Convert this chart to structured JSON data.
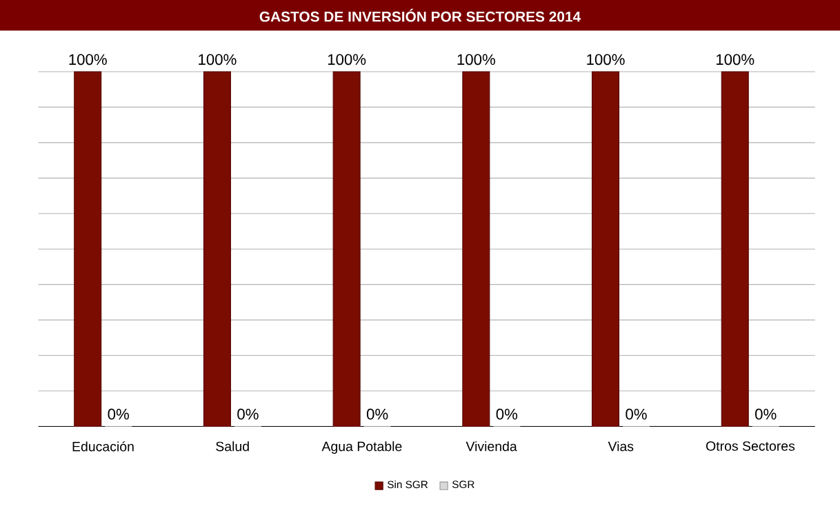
{
  "chart_data": {
    "type": "bar",
    "title": "GASTOS DE INVERSIÓN POR SECTORES 2014",
    "categories": [
      "Educación",
      "Salud",
      "Agua Potable",
      "Vivienda",
      "Vias",
      "Otros Sectores"
    ],
    "series": [
      {
        "name": "Sin SGR",
        "color": "#7a0c02",
        "values": [
          100,
          100,
          100,
          100,
          100,
          100
        ],
        "value_labels": [
          "100%",
          "100%",
          "100%",
          "100%",
          "100%",
          "100%"
        ]
      },
      {
        "name": "SGR",
        "color": "#d9d9d9",
        "values": [
          0,
          0,
          0,
          0,
          0,
          0
        ],
        "value_labels": [
          "0%",
          "0%",
          "0%",
          "0%",
          "0%",
          "0%"
        ]
      }
    ],
    "ylim": [
      0,
      100
    ],
    "yticks": [
      {
        "value": 0,
        "label": null
      },
      {
        "value": 10,
        "label": null
      },
      {
        "value": 20,
        "label": null
      },
      {
        "value": 30,
        "label": null
      },
      {
        "value": 40,
        "label": null
      },
      {
        "value": 50,
        "label": null
      },
      {
        "value": 60,
        "label": null
      },
      {
        "value": 70,
        "label": null
      },
      {
        "value": 80,
        "label": null
      },
      {
        "value": 90,
        "label": null
      },
      {
        "value": 100,
        "label": null
      }
    ],
    "tick_labels": "x",
    "grid": "y",
    "legend": "bottom"
  }
}
